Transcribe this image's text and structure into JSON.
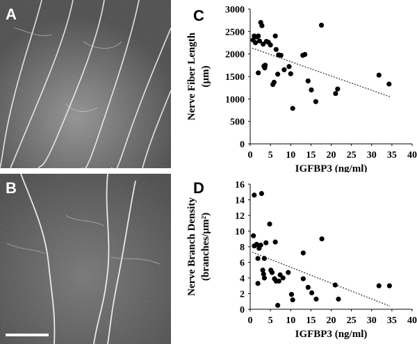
{
  "panels": {
    "a": {
      "label": "A"
    },
    "b": {
      "label": "B"
    },
    "c": {
      "label": "C"
    },
    "d": {
      "label": "D"
    }
  },
  "chart_data": [
    {
      "type": "scatter",
      "xlabel": "IGFBP3 (ng/ml)",
      "ylabel_line1": "Nerve Fiber Length",
      "ylabel_line2": "(µm)",
      "xlim": [
        0,
        40
      ],
      "ylim": [
        0,
        3000
      ],
      "x_ticks": [
        0,
        5,
        10,
        15,
        20,
        25,
        30,
        35,
        40
      ],
      "y_ticks": [
        0,
        500,
        1000,
        1500,
        2000,
        2500,
        3000
      ],
      "trendline": [
        [
          0.5,
          2130
        ],
        [
          34.5,
          1050
        ]
      ],
      "points": [
        [
          0.7,
          2310
        ],
        [
          1.0,
          2400
        ],
        [
          1.3,
          2250
        ],
        [
          1.6,
          2380
        ],
        [
          2.0,
          1580
        ],
        [
          2.0,
          2400
        ],
        [
          2.3,
          2290
        ],
        [
          2.6,
          2700
        ],
        [
          2.9,
          2630
        ],
        [
          3.2,
          2220
        ],
        [
          3.4,
          1730
        ],
        [
          3.6,
          1690
        ],
        [
          3.7,
          1750
        ],
        [
          4.0,
          2280
        ],
        [
          4.5,
          2260
        ],
        [
          5.0,
          2200
        ],
        [
          5.6,
          1320
        ],
        [
          5.9,
          1370
        ],
        [
          6.2,
          2400
        ],
        [
          6.4,
          2100
        ],
        [
          6.8,
          1550
        ],
        [
          7.0,
          1980
        ],
        [
          7.6,
          1970
        ],
        [
          8.4,
          1650
        ],
        [
          9.6,
          1720
        ],
        [
          10.0,
          1560
        ],
        [
          10.5,
          790
        ],
        [
          13.0,
          1970
        ],
        [
          13.5,
          1990
        ],
        [
          14.3,
          1400
        ],
        [
          15.1,
          1200
        ],
        [
          16.2,
          940
        ],
        [
          17.6,
          2640
        ],
        [
          21.1,
          1120
        ],
        [
          21.6,
          1220
        ],
        [
          31.8,
          1530
        ],
        [
          34.3,
          1330
        ]
      ]
    },
    {
      "type": "scatter",
      "xlabel": "IGFBP3 (ng/ml)",
      "ylabel_line1": "Nerve Branch Density",
      "ylabel_line2": "(branches/µm²)",
      "xlim": [
        0,
        40
      ],
      "ylim": [
        0,
        16
      ],
      "x_ticks": [
        0,
        5,
        10,
        15,
        20,
        25,
        30,
        35,
        40
      ],
      "y_ticks": [
        0,
        2,
        4,
        6,
        8,
        10,
        12,
        14,
        16
      ],
      "trendline": [
        [
          0.5,
          7.3
        ],
        [
          34.5,
          0.4
        ]
      ],
      "points": [
        [
          0.8,
          9.4
        ],
        [
          1.0,
          8.1
        ],
        [
          1.0,
          14.6
        ],
        [
          1.6,
          8.3
        ],
        [
          1.9,
          3.3
        ],
        [
          1.9,
          6.5
        ],
        [
          2.2,
          7.8
        ],
        [
          2.6,
          8.2
        ],
        [
          2.8,
          14.8
        ],
        [
          3.1,
          5.0
        ],
        [
          3.3,
          4.5
        ],
        [
          3.5,
          6.5
        ],
        [
          3.5,
          4.0
        ],
        [
          3.9,
          8.5
        ],
        [
          4.8,
          10.9
        ],
        [
          5.1,
          5.0
        ],
        [
          5.4,
          4.7
        ],
        [
          6.0,
          3.9
        ],
        [
          6.2,
          8.6
        ],
        [
          6.4,
          3.6
        ],
        [
          6.8,
          0.5
        ],
        [
          7.1,
          3.6
        ],
        [
          7.4,
          4.4
        ],
        [
          8.1,
          4.0
        ],
        [
          9.4,
          4.7
        ],
        [
          10.2,
          1.9
        ],
        [
          10.5,
          1.2
        ],
        [
          13.1,
          7.2
        ],
        [
          13.1,
          3.9
        ],
        [
          14.3,
          2.8
        ],
        [
          15.2,
          2.1
        ],
        [
          16.3,
          1.3
        ],
        [
          17.7,
          9.0
        ],
        [
          21.0,
          3.1
        ],
        [
          21.8,
          1.3
        ],
        [
          31.8,
          3.0
        ],
        [
          34.4,
          3.0
        ]
      ]
    }
  ]
}
